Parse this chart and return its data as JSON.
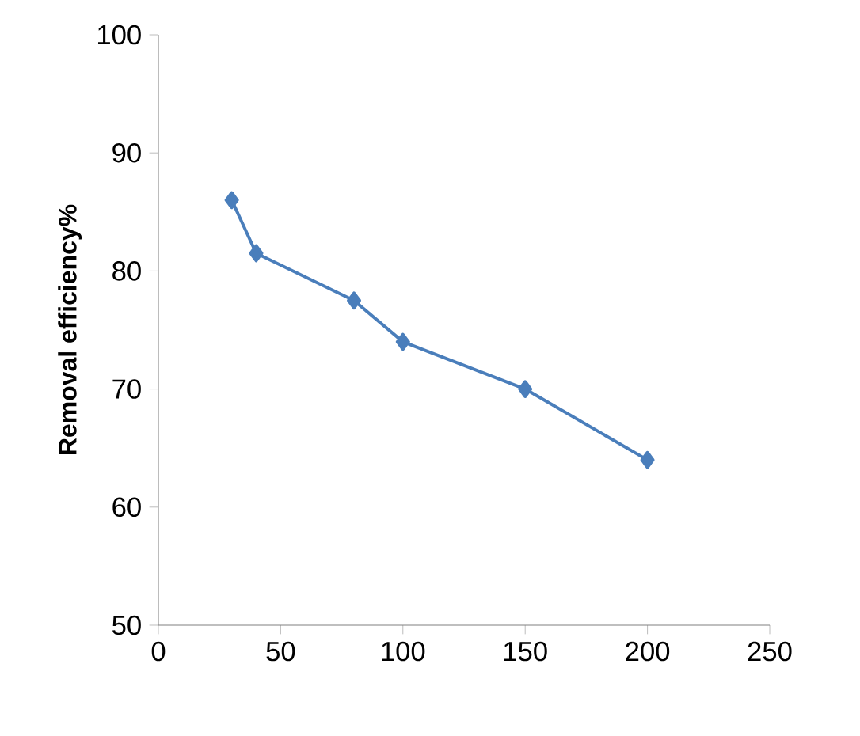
{
  "chart_data": {
    "type": "line",
    "ylabel": "Removal efficiency%",
    "x": [
      30,
      40,
      80,
      100,
      150,
      200
    ],
    "series": [
      {
        "color": "#4a7ebb",
        "values": [
          86,
          81.5,
          77.5,
          74,
          70,
          64
        ]
      }
    ],
    "xlim": [
      0,
      250
    ],
    "xticks": [
      0,
      50,
      100,
      150,
      200,
      250
    ],
    "ylim": [
      50,
      100
    ],
    "yticks": [
      50,
      60,
      70,
      80,
      90,
      100
    ],
    "grid": false,
    "marker": "diamond",
    "line_style": "solid"
  }
}
